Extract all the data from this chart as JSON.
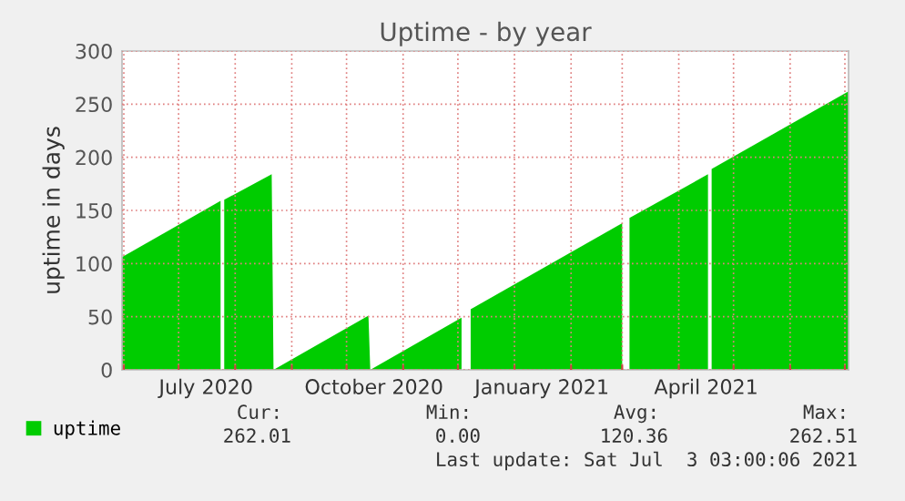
{
  "chart_data": {
    "type": "area",
    "title": "Uptime - by year",
    "ylabel": "uptime in days",
    "x": [
      "2020-05-31",
      "2020-07-24",
      "2020-07-25",
      "2020-07-26",
      "2020-08-21",
      "2020-08-22",
      "2020-10-13",
      "2020-10-14",
      "2020-12-03",
      "2020-12-05",
      "2020-12-08",
      "2021-03-01",
      "2021-03-03",
      "2021-03-05",
      "2021-04-17",
      "2021-04-18",
      "2021-04-19",
      "2021-07-03"
    ],
    "series": [
      {
        "name": "uptime",
        "color": "#00cc00",
        "values": [
          106,
          159,
          null,
          160,
          184,
          0,
          51,
          0,
          49,
          null,
          57,
          138,
          null,
          143,
          184,
          null,
          189,
          262
        ]
      }
    ],
    "xlim": [
      "2020-05-31",
      "2021-07-03"
    ],
    "xticks": [
      {
        "value": "2020-06-01",
        "label": null
      },
      {
        "value": "2020-07-01",
        "label": null
      },
      {
        "value": "2020-07-16",
        "label": "July 2020"
      },
      {
        "value": "2020-08-01",
        "label": null
      },
      {
        "value": "2020-09-01",
        "label": null
      },
      {
        "value": "2020-10-01",
        "label": null
      },
      {
        "value": "2020-10-16",
        "label": "October 2020"
      },
      {
        "value": "2020-11-01",
        "label": null
      },
      {
        "value": "2020-12-01",
        "label": null
      },
      {
        "value": "2021-01-01",
        "label": null
      },
      {
        "value": "2021-01-16",
        "label": "January 2021"
      },
      {
        "value": "2021-02-01",
        "label": null
      },
      {
        "value": "2021-03-01",
        "label": null
      },
      {
        "value": "2021-04-01",
        "label": null
      },
      {
        "value": "2021-04-16",
        "label": "April 2021"
      },
      {
        "value": "2021-05-01",
        "label": null
      },
      {
        "value": "2021-06-01",
        "label": null
      },
      {
        "value": "2021-07-01",
        "label": null
      }
    ],
    "ylim": [
      0,
      300
    ],
    "yticks": [
      0,
      50,
      100,
      150,
      200,
      250,
      300
    ],
    "grid": true,
    "legend": "bottom left",
    "annotations": [
      "Cur:",
      "Min:",
      "Avg:",
      "Max:",
      "262.01",
      "0.00",
      "120.36",
      "262.51",
      "Last update: Sat Jul  3 03:00:06 2021"
    ]
  }
}
